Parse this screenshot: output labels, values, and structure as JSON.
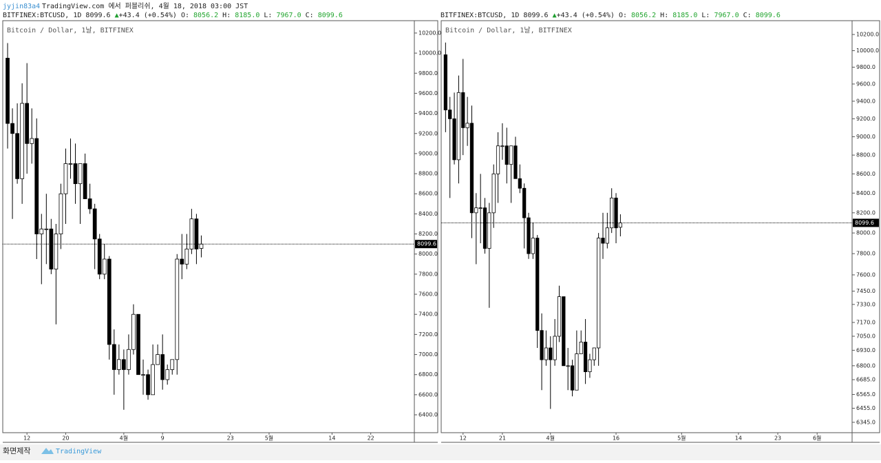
{
  "header": {
    "author": "jyjin83a4",
    "publish": "TradingView.com 에서 퍼블리쉬, 4월 18, 2018 03:00 JST"
  },
  "footer": {
    "caption": "화면제작",
    "brand": "TradingView"
  },
  "chart_data": [
    {
      "type": "candlestick",
      "subtitle": "Bitcoin / Dollar, 1날, BITFINEX",
      "legend": {
        "symbol": "BITFINEX:BTCUSD, 1D",
        "last": "8099.6",
        "change": "+43.4 (+0.54%)",
        "o_label": "O:",
        "o": "8056.2",
        "h_label": "H:",
        "h": "8185.0",
        "l_label": "L:",
        "l": "7967.0",
        "c_label": "C:",
        "c": "8099.6"
      },
      "log_scale": false,
      "up_color": "#ffffff",
      "down_color": "#000000",
      "edge_color": "#000000",
      "x": [
        "2018-03-08",
        "2018-03-09",
        "2018-03-10",
        "2018-03-11",
        "2018-03-12",
        "2018-03-13",
        "2018-03-14",
        "2018-03-15",
        "2018-03-16",
        "2018-03-17",
        "2018-03-18",
        "2018-03-19",
        "2018-03-20",
        "2018-03-21",
        "2018-03-22",
        "2018-03-23",
        "2018-03-24",
        "2018-03-25",
        "2018-03-26",
        "2018-03-27",
        "2018-03-28",
        "2018-03-29",
        "2018-03-30",
        "2018-03-31",
        "2018-04-01",
        "2018-04-02",
        "2018-04-03",
        "2018-04-04",
        "2018-04-05",
        "2018-04-06",
        "2018-04-07",
        "2018-04-08",
        "2018-04-09",
        "2018-04-10",
        "2018-04-11",
        "2018-04-12",
        "2018-04-13",
        "2018-04-14",
        "2018-04-15",
        "2018-04-16",
        "2018-04-17"
      ],
      "open": [
        9950,
        9300,
        9200,
        8750,
        9500,
        9100,
        9150,
        8200,
        8250,
        8250,
        7850,
        8200,
        8600,
        8900,
        8900,
        8700,
        8900,
        8550,
        8450,
        8150,
        7800,
        7950,
        7100,
        6850,
        6950,
        6850,
        7050,
        7400,
        6800,
        6800,
        6600,
        6900,
        7000,
        6750,
        6850,
        6950,
        7950,
        7900,
        8050,
        8350,
        8056.2
      ],
      "high": [
        10100,
        9450,
        9500,
        9700,
        9900,
        9450,
        9350,
        8400,
        8600,
        8350,
        8300,
        8700,
        9050,
        9150,
        9100,
        8900,
        9000,
        8700,
        8500,
        8200,
        8100,
        7980,
        7250,
        7100,
        7050,
        7200,
        7500,
        7400,
        6950,
        6850,
        7100,
        7100,
        7200,
        6900,
        6950,
        8000,
        8200,
        8200,
        8450,
        8400,
        8185
      ],
      "low": [
        9050,
        8350,
        8700,
        8500,
        8800,
        8900,
        7950,
        7700,
        7900,
        7800,
        7300,
        8050,
        8300,
        8750,
        8500,
        8300,
        8550,
        8400,
        7850,
        7750,
        7750,
        6950,
        6600,
        6800,
        6450,
        6800,
        7000,
        6800,
        6600,
        6550,
        6600,
        6900,
        6650,
        6700,
        6800,
        6800,
        7750,
        7850,
        8000,
        7900,
        7967
      ],
      "close": [
        9300,
        9200,
        8750,
        9500,
        9100,
        9150,
        8200,
        8250,
        8250,
        7850,
        8200,
        8600,
        8900,
        8900,
        8700,
        8900,
        8550,
        8450,
        8150,
        7800,
        7950,
        7100,
        6850,
        6950,
        6850,
        7050,
        7400,
        6800,
        6800,
        6600,
        6900,
        7000,
        6750,
        6850,
        6950,
        7950,
        7900,
        8050,
        8350,
        8050,
        8099.6
      ],
      "xlim": [
        "2018-03-07",
        "2018-05-31"
      ],
      "xticks": [
        {
          "value": "2018-03-12",
          "label": "12"
        },
        {
          "value": "2018-03-20",
          "label": "20"
        },
        {
          "value": "2018-04-01",
          "label": "4월"
        },
        {
          "value": "2018-04-09",
          "label": "9"
        },
        {
          "value": "2018-04-23",
          "label": "23"
        },
        {
          "value": "2018-05-01",
          "label": "5월"
        },
        {
          "value": "2018-05-14",
          "label": "14"
        },
        {
          "value": "2018-05-22",
          "label": "22"
        }
      ],
      "ylim": [
        6222,
        10323
      ],
      "yticks": [
        {
          "value": 6400,
          "label": "6400.0"
        },
        {
          "value": 6600,
          "label": "6600.0"
        },
        {
          "value": 6800,
          "label": "6800.0"
        },
        {
          "value": 7000,
          "label": "7000.0"
        },
        {
          "value": 7200,
          "label": "7200.0"
        },
        {
          "value": 7400,
          "label": "7400.0"
        },
        {
          "value": 7600,
          "label": "7600.0"
        },
        {
          "value": 7800,
          "label": "7800.0"
        },
        {
          "value": 8000,
          "label": "8000.0"
        },
        {
          "value": 8200,
          "label": "8200.0"
        },
        {
          "value": 8400,
          "label": "8400.0"
        },
        {
          "value": 8600,
          "label": "8600.0"
        },
        {
          "value": 8800,
          "label": "8800.0"
        },
        {
          "value": 9000,
          "label": "9000.0"
        },
        {
          "value": 9200,
          "label": "9200.0"
        },
        {
          "value": 9400,
          "label": "9400.0"
        },
        {
          "value": 9600,
          "label": "9600.0"
        },
        {
          "value": 9800,
          "label": "9800.0"
        },
        {
          "value": 10000,
          "label": "10000.0"
        },
        {
          "value": 10200,
          "label": "10200.0"
        }
      ]
    },
    {
      "type": "candlestick",
      "subtitle": "Bitcoin / Dollar, 1날, BITFINEX",
      "legend": {
        "symbol": "BITFINEX:BTCUSD, 1D",
        "last": "8099.6",
        "change": "+43.4 (+0.54%)",
        "o_label": "O:",
        "o": "8056.2",
        "h_label": "H:",
        "h": "8185.0",
        "l_label": "L:",
        "l": "7967.0",
        "c_label": "C:",
        "c": "8099.6"
      },
      "log_scale": true,
      "up_color": "#ffffff",
      "down_color": "#000000",
      "edge_color": "#000000",
      "x": [
        "2018-03-08",
        "2018-03-09",
        "2018-03-10",
        "2018-03-11",
        "2018-03-12",
        "2018-03-13",
        "2018-03-14",
        "2018-03-15",
        "2018-03-16",
        "2018-03-17",
        "2018-03-18",
        "2018-03-19",
        "2018-03-20",
        "2018-03-21",
        "2018-03-22",
        "2018-03-23",
        "2018-03-24",
        "2018-03-25",
        "2018-03-26",
        "2018-03-27",
        "2018-03-28",
        "2018-03-29",
        "2018-03-30",
        "2018-03-31",
        "2018-04-01",
        "2018-04-02",
        "2018-04-03",
        "2018-04-04",
        "2018-04-05",
        "2018-04-06",
        "2018-04-07",
        "2018-04-08",
        "2018-04-09",
        "2018-04-10",
        "2018-04-11",
        "2018-04-12",
        "2018-04-13",
        "2018-04-14",
        "2018-04-15",
        "2018-04-16",
        "2018-04-17"
      ],
      "open": [
        9950,
        9300,
        9200,
        8750,
        9500,
        9100,
        9150,
        8200,
        8250,
        8250,
        7850,
        8200,
        8600,
        8900,
        8900,
        8700,
        8900,
        8550,
        8450,
        8150,
        7800,
        7950,
        7100,
        6850,
        6950,
        6850,
        7050,
        7400,
        6800,
        6800,
        6600,
        6900,
        7000,
        6750,
        6850,
        6950,
        7950,
        7900,
        8050,
        8350,
        8056.2
      ],
      "high": [
        10100,
        9450,
        9500,
        9700,
        9900,
        9450,
        9350,
        8400,
        8600,
        8350,
        8300,
        8700,
        9050,
        9150,
        9100,
        8900,
        9000,
        8700,
        8500,
        8200,
        8100,
        7980,
        7250,
        7100,
        7050,
        7200,
        7500,
        7400,
        6950,
        6850,
        7100,
        7100,
        7200,
        6900,
        6950,
        8000,
        8200,
        8200,
        8450,
        8400,
        8185
      ],
      "low": [
        9050,
        8350,
        8700,
        8500,
        8800,
        8900,
        7950,
        7700,
        7900,
        7800,
        7300,
        8050,
        8300,
        8750,
        8500,
        8300,
        8550,
        8400,
        7850,
        7750,
        7750,
        6950,
        6600,
        6800,
        6450,
        6800,
        7000,
        6800,
        6600,
        6550,
        6600,
        6900,
        6650,
        6700,
        6800,
        6800,
        7750,
        7850,
        8000,
        7900,
        7967
      ],
      "close": [
        9300,
        9200,
        8750,
        9500,
        9100,
        9150,
        8200,
        8250,
        8250,
        7850,
        8200,
        8600,
        8900,
        8900,
        8700,
        8900,
        8550,
        8450,
        8150,
        7800,
        7950,
        7100,
        6850,
        6950,
        6850,
        7050,
        7400,
        6800,
        6800,
        6600,
        6900,
        7000,
        6750,
        6850,
        6950,
        7950,
        7900,
        8050,
        8350,
        8050,
        8099.6
      ],
      "xlim": [
        "2018-03-07",
        "2018-06-09"
      ],
      "xticks": [
        {
          "value": "2018-03-12",
          "label": "12"
        },
        {
          "value": "2018-03-21",
          "label": "21"
        },
        {
          "value": "2018-04-01",
          "label": "4월"
        },
        {
          "value": "2018-04-16",
          "label": "16"
        },
        {
          "value": "2018-05-01",
          "label": "5월"
        },
        {
          "value": "2018-05-14",
          "label": "14"
        },
        {
          "value": "2018-05-23",
          "label": "23"
        },
        {
          "value": "2018-06-01",
          "label": "6월"
        }
      ],
      "ylim": [
        6265,
        10374
      ],
      "yticks": [
        {
          "value": 6345,
          "label": "6345.0"
        },
        {
          "value": 6455,
          "label": "6455.0"
        },
        {
          "value": 6565,
          "label": "6565.0"
        },
        {
          "value": 6685,
          "label": "6685.0"
        },
        {
          "value": 6800,
          "label": "6800.0"
        },
        {
          "value": 6930,
          "label": "6930.0"
        },
        {
          "value": 7050,
          "label": "7050.0"
        },
        {
          "value": 7170,
          "label": "7170.0"
        },
        {
          "value": 7330,
          "label": "7330.0"
        },
        {
          "value": 7450,
          "label": "7450.0"
        },
        {
          "value": 7600,
          "label": "7600.0"
        },
        {
          "value": 7800,
          "label": "7800.0"
        },
        {
          "value": 8000,
          "label": "8000.0"
        },
        {
          "value": 8200,
          "label": "8200.0"
        },
        {
          "value": 8400,
          "label": "8400.0"
        },
        {
          "value": 8600,
          "label": "8600.0"
        },
        {
          "value": 8800,
          "label": "8800.0"
        },
        {
          "value": 9000,
          "label": "9000.0"
        },
        {
          "value": 9200,
          "label": "9200.0"
        },
        {
          "value": 9400,
          "label": "9400.0"
        },
        {
          "value": 9600,
          "label": "9600.0"
        },
        {
          "value": 9800,
          "label": "9800.0"
        },
        {
          "value": 10000,
          "label": "10000.0"
        },
        {
          "value": 10200,
          "label": "10200.0"
        }
      ]
    }
  ]
}
